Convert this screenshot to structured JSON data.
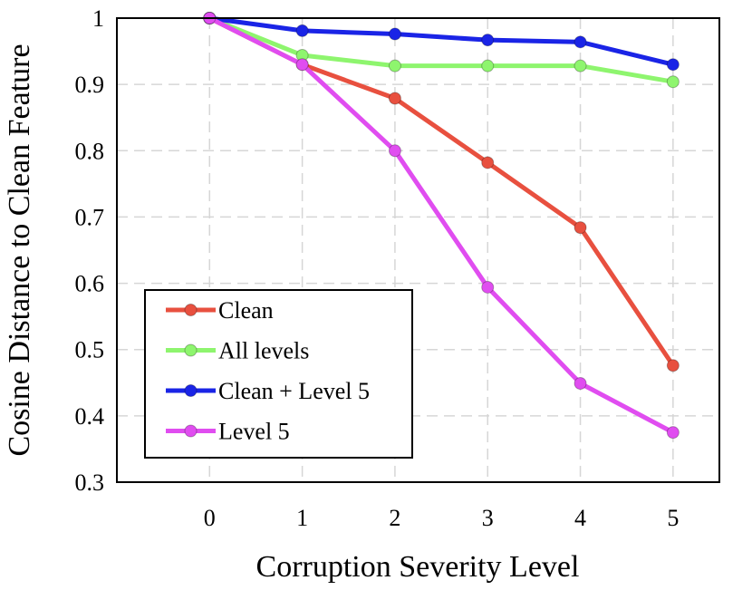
{
  "chart_data": {
    "type": "line",
    "title": "",
    "xlabel": "Corruption Severity Level",
    "ylabel": "Cosine Distance to Clean Feature",
    "x": [
      0,
      1,
      2,
      3,
      4,
      5
    ],
    "xticks": [
      "0",
      "1",
      "2",
      "3",
      "4",
      "5"
    ],
    "xlim": [
      -1,
      5.5
    ],
    "ylim": [
      0.3,
      1.0
    ],
    "yticks": [
      "0.3",
      "0.4",
      "0.5",
      "0.6",
      "0.7",
      "0.8",
      "0.9",
      "1"
    ],
    "grid": true,
    "legend_position": "bottom-left",
    "series": [
      {
        "name": "Clean",
        "color": "#e8503f",
        "values": [
          1.0,
          0.93,
          0.879,
          0.782,
          0.684,
          0.476
        ]
      },
      {
        "name": "All levels",
        "color": "#8ef56e",
        "values": [
          1.0,
          0.944,
          0.928,
          0.928,
          0.928,
          0.904
        ]
      },
      {
        "name": "Clean + Level 5",
        "color": "#1a24e6",
        "values": [
          1.0,
          0.981,
          0.976,
          0.967,
          0.964,
          0.93
        ]
      },
      {
        "name": "Level 5",
        "color": "#e04df0",
        "values": [
          1.0,
          0.93,
          0.8,
          0.594,
          0.449,
          0.375
        ]
      }
    ]
  }
}
